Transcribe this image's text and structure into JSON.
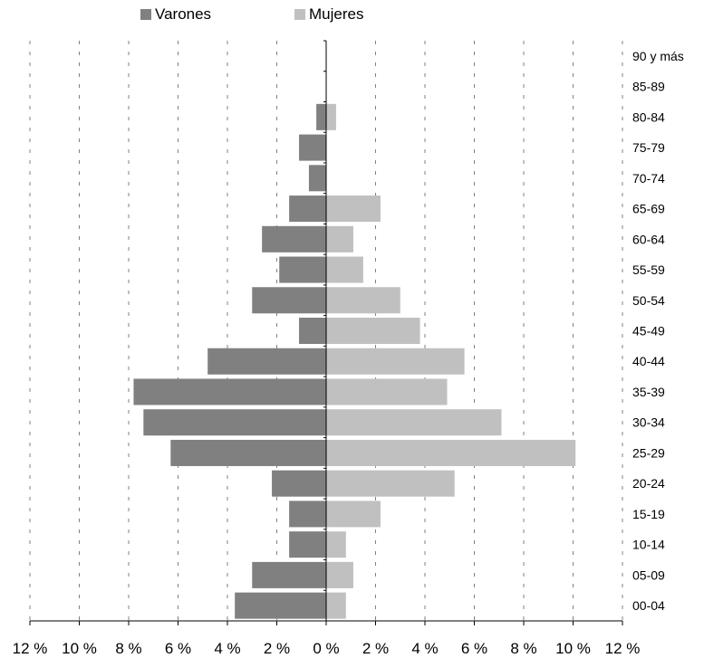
{
  "chart_data": {
    "type": "bar",
    "orientation": "horizontal",
    "subtype": "population-pyramid",
    "categories": [
      "00-04",
      "05-09",
      "10-14",
      "15-19",
      "20-24",
      "25-29",
      "30-34",
      "35-39",
      "40-44",
      "45-49",
      "50-54",
      "55-59",
      "60-64",
      "65-69",
      "70-74",
      "75-79",
      "80-84",
      "85-89",
      "90 y más"
    ],
    "series": [
      {
        "name": "Varones",
        "color": "#808080",
        "side": "left",
        "values": [
          3.7,
          3.0,
          1.5,
          1.5,
          2.2,
          6.3,
          7.4,
          7.8,
          4.8,
          1.1,
          3.0,
          1.9,
          2.6,
          1.5,
          0.7,
          1.1,
          0.4,
          0,
          0
        ]
      },
      {
        "name": "Mujeres",
        "color": "#c0c0c0",
        "side": "right",
        "values": [
          0.8,
          1.1,
          0.8,
          2.2,
          5.2,
          10.1,
          7.1,
          4.9,
          5.6,
          3.8,
          3.0,
          1.5,
          1.1,
          2.2,
          0,
          0,
          0.4,
          0,
          0
        ]
      }
    ],
    "x_ticks": [
      "12 %",
      "10 %",
      "8 %",
      "6 %",
      "4 %",
      "2 %",
      "0 %",
      "2 %",
      "4 %",
      "6 %",
      "8 %",
      "10 %",
      "12 %"
    ],
    "xlim": [
      -12,
      12
    ],
    "grid": "vertical dashed",
    "legend_position": "top",
    "title": "",
    "xlabel": "",
    "ylabel": ""
  }
}
